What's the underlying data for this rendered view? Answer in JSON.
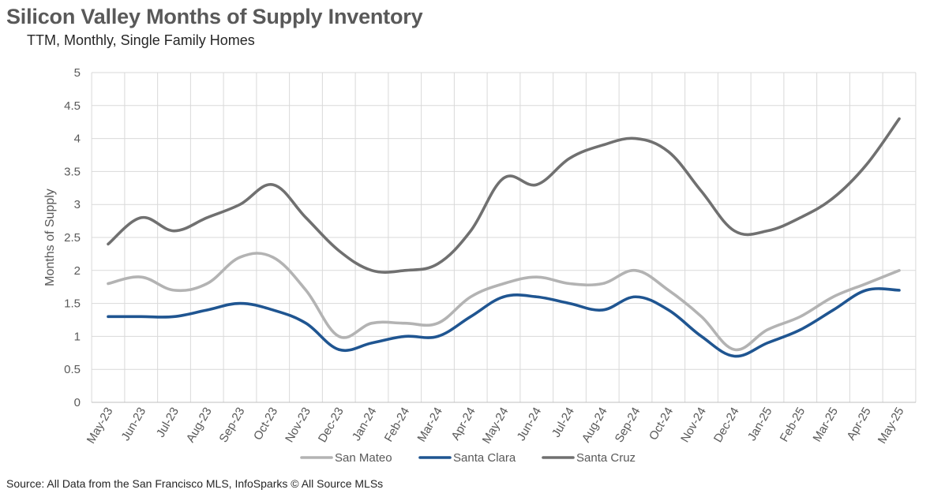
{
  "header": {
    "title": "Silicon Valley Months of Supply Inventory",
    "subtitle": "TTM, Monthly, Single Family Homes"
  },
  "footer": {
    "source": "Source: All Data from the San Francisco MLS, InfoSparks © All Source MLSs"
  },
  "chart_data": {
    "type": "line",
    "title": "Silicon Valley Months of Supply Inventory",
    "subtitle": "TTM, Monthly, Single Family Homes",
    "xlabel": "",
    "ylabel": "Months of Supply",
    "ylim": [
      0,
      5
    ],
    "yticks": [
      "0",
      "0.5",
      "1",
      "1.5",
      "2",
      "2.5",
      "3",
      "3.5",
      "4",
      "4.5",
      "5"
    ],
    "grid": true,
    "legend_position": "bottom",
    "categories": [
      "May-23",
      "Jun-23",
      "Jul-23",
      "Aug-23",
      "Sep-23",
      "Oct-23",
      "Nov-23",
      "Dec-23",
      "Jan-24",
      "Feb-24",
      "Mar-24",
      "Apr-24",
      "May-24",
      "Jun-24",
      "Jul-24",
      "Aug-24",
      "Sep-24",
      "Oct-24",
      "Nov-24",
      "Dec-24",
      "Jan-25",
      "Feb-25",
      "Mar-25",
      "Apr-25",
      "May-25"
    ],
    "series": [
      {
        "name": "San Mateo",
        "color": "#b3b3b3",
        "values": [
          1.8,
          1.9,
          1.7,
          1.8,
          2.2,
          2.2,
          1.7,
          1.0,
          1.2,
          1.2,
          1.2,
          1.6,
          1.8,
          1.9,
          1.8,
          1.8,
          2.0,
          1.7,
          1.3,
          0.8,
          1.1,
          1.3,
          1.6,
          1.8,
          2.0
        ]
      },
      {
        "name": "Santa Clara",
        "color": "#1f5591",
        "values": [
          1.3,
          1.3,
          1.3,
          1.4,
          1.5,
          1.4,
          1.2,
          0.8,
          0.9,
          1.0,
          1.0,
          1.3,
          1.6,
          1.6,
          1.5,
          1.4,
          1.6,
          1.4,
          1.0,
          0.7,
          0.9,
          1.1,
          1.4,
          1.7,
          1.7
        ]
      },
      {
        "name": "Santa Cruz",
        "color": "#707070",
        "values": [
          2.4,
          2.8,
          2.6,
          2.8,
          3.0,
          3.3,
          2.8,
          2.3,
          2.0,
          2.0,
          2.1,
          2.6,
          3.4,
          3.3,
          3.7,
          3.9,
          4.0,
          3.8,
          3.2,
          2.6,
          2.6,
          2.8,
          3.1,
          3.6,
          4.3
        ]
      }
    ]
  }
}
